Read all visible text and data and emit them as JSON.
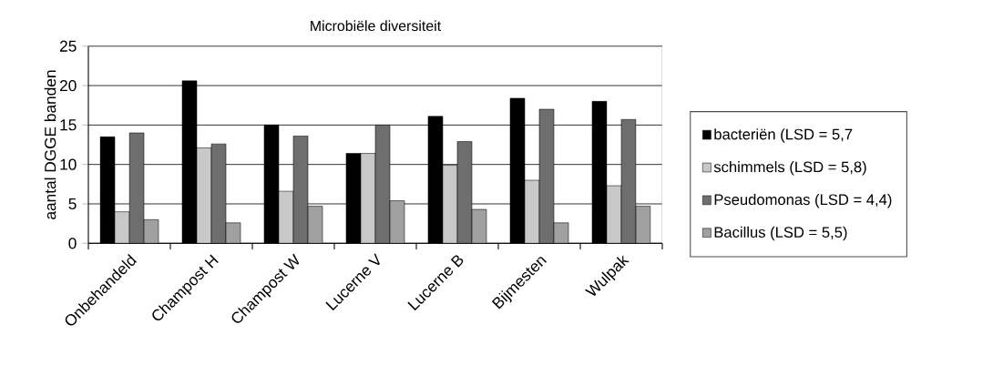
{
  "chart_data": {
    "type": "bar",
    "title": "Microbiële diversiteit",
    "ylabel": "aantal DGGE banden",
    "categories": [
      "Onbehandeld",
      "Champost H",
      "Champost W",
      "Lucerne V",
      "Lucerne B",
      "Bijmesten",
      "Wulpak"
    ],
    "series": [
      {
        "name": "bacteriën (LSD = 5,7",
        "color": "#000000",
        "values": [
          13.5,
          20.6,
          15.0,
          11.4,
          16.1,
          18.4,
          18.0
        ]
      },
      {
        "name": "schimmels (LSD = 5,8)",
        "color": "#c8c8c8",
        "values": [
          4.0,
          12.1,
          6.6,
          11.4,
          9.9,
          8.0,
          7.3
        ]
      },
      {
        "name": "Pseudomonas (LSD = 4,4)",
        "color": "#6e6e6e",
        "values": [
          14.0,
          12.6,
          13.6,
          15.0,
          12.9,
          17.0,
          15.7
        ]
      },
      {
        "name": "Bacillus (LSD = 5,5)",
        "color": "#a0a0a0",
        "values": [
          3.0,
          2.6,
          4.7,
          5.4,
          4.3,
          2.6,
          4.7
        ]
      }
    ],
    "ylim": [
      0,
      25
    ],
    "yticks": [
      0,
      5,
      10,
      15,
      20,
      25
    ],
    "grid": "y",
    "legend": "right"
  }
}
